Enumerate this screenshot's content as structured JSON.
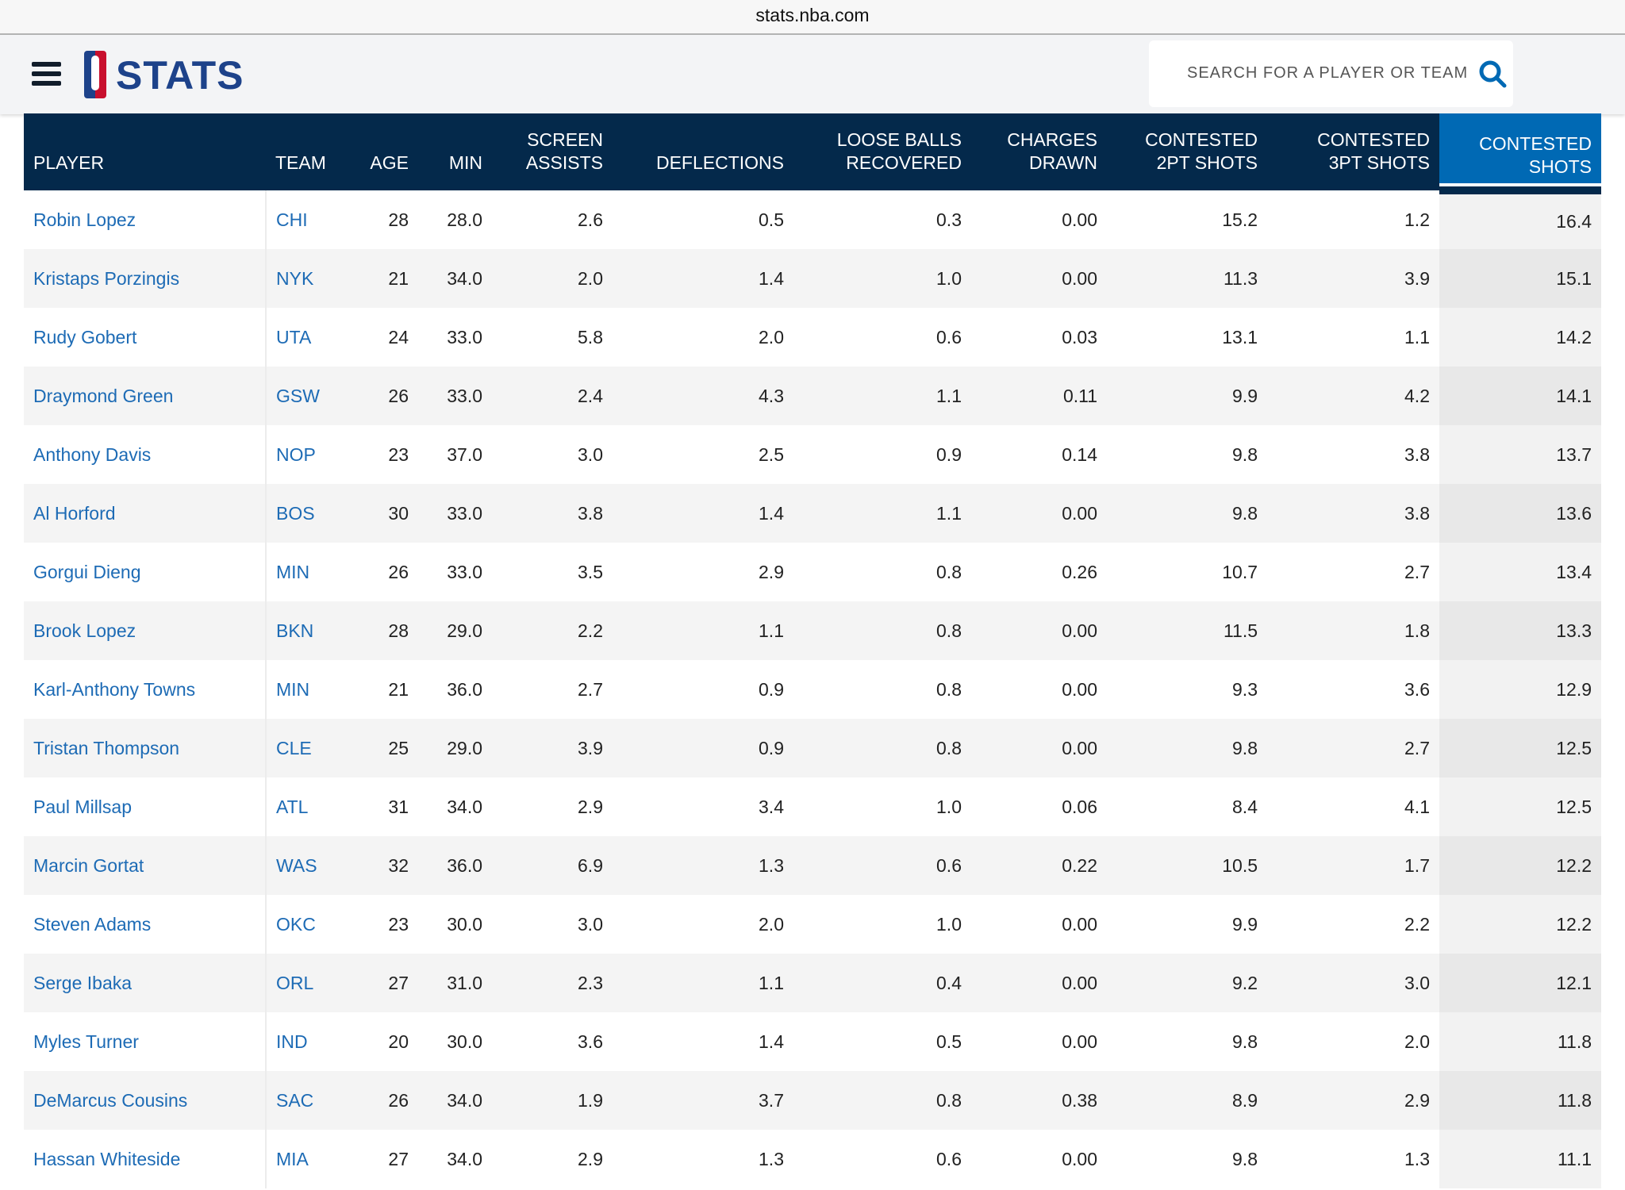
{
  "browser": {
    "url": "stats.nba.com"
  },
  "header": {
    "brand": "STATS",
    "search_placeholder": "SEARCH FOR A PLAYER OR TEAM",
    "colors": {
      "navy": "#04294b",
      "accent": "#0069b4",
      "link": "#1d6bb5"
    }
  },
  "table": {
    "columns": [
      "PLAYER",
      "TEAM",
      "AGE",
      "MIN",
      "SCREEN ASSISTS",
      "DEFLECTIONS",
      "LOOSE BALLS RECOVERED",
      "CHARGES DRAWN",
      "CONTESTED 2PT SHOTS",
      "CONTESTED 3PT SHOTS",
      "CONTESTED SHOTS"
    ],
    "sorted_column": "CONTESTED SHOTS",
    "rows": [
      [
        "Robin Lopez",
        "CHI",
        "28",
        "28.0",
        "2.6",
        "0.5",
        "0.3",
        "0.00",
        "15.2",
        "1.2",
        "16.4"
      ],
      [
        "Kristaps Porzingis",
        "NYK",
        "21",
        "34.0",
        "2.0",
        "1.4",
        "1.0",
        "0.00",
        "11.3",
        "3.9",
        "15.1"
      ],
      [
        "Rudy Gobert",
        "UTA",
        "24",
        "33.0",
        "5.8",
        "2.0",
        "0.6",
        "0.03",
        "13.1",
        "1.1",
        "14.2"
      ],
      [
        "Draymond Green",
        "GSW",
        "26",
        "33.0",
        "2.4",
        "4.3",
        "1.1",
        "0.11",
        "9.9",
        "4.2",
        "14.1"
      ],
      [
        "Anthony Davis",
        "NOP",
        "23",
        "37.0",
        "3.0",
        "2.5",
        "0.9",
        "0.14",
        "9.8",
        "3.8",
        "13.7"
      ],
      [
        "Al Horford",
        "BOS",
        "30",
        "33.0",
        "3.8",
        "1.4",
        "1.1",
        "0.00",
        "9.8",
        "3.8",
        "13.6"
      ],
      [
        "Gorgui Dieng",
        "MIN",
        "26",
        "33.0",
        "3.5",
        "2.9",
        "0.8",
        "0.26",
        "10.7",
        "2.7",
        "13.4"
      ],
      [
        "Brook Lopez",
        "BKN",
        "28",
        "29.0",
        "2.2",
        "1.1",
        "0.8",
        "0.00",
        "11.5",
        "1.8",
        "13.3"
      ],
      [
        "Karl-Anthony Towns",
        "MIN",
        "21",
        "36.0",
        "2.7",
        "0.9",
        "0.8",
        "0.00",
        "9.3",
        "3.6",
        "12.9"
      ],
      [
        "Tristan Thompson",
        "CLE",
        "25",
        "29.0",
        "3.9",
        "0.9",
        "0.8",
        "0.00",
        "9.8",
        "2.7",
        "12.5"
      ],
      [
        "Paul Millsap",
        "ATL",
        "31",
        "34.0",
        "2.9",
        "3.4",
        "1.0",
        "0.06",
        "8.4",
        "4.1",
        "12.5"
      ],
      [
        "Marcin Gortat",
        "WAS",
        "32",
        "36.0",
        "6.9",
        "1.3",
        "0.6",
        "0.22",
        "10.5",
        "1.7",
        "12.2"
      ],
      [
        "Steven Adams",
        "OKC",
        "23",
        "30.0",
        "3.0",
        "2.0",
        "1.0",
        "0.00",
        "9.9",
        "2.2",
        "12.2"
      ],
      [
        "Serge Ibaka",
        "ORL",
        "27",
        "31.0",
        "2.3",
        "1.1",
        "0.4",
        "0.00",
        "9.2",
        "3.0",
        "12.1"
      ],
      [
        "Myles Turner",
        "IND",
        "20",
        "30.0",
        "3.6",
        "1.4",
        "0.5",
        "0.00",
        "9.8",
        "2.0",
        "11.8"
      ],
      [
        "DeMarcus Cousins",
        "SAC",
        "26",
        "34.0",
        "1.9",
        "3.7",
        "0.8",
        "0.38",
        "8.9",
        "2.9",
        "11.8"
      ],
      [
        "Hassan Whiteside",
        "MIA",
        "27",
        "34.0",
        "2.9",
        "1.3",
        "0.6",
        "0.00",
        "9.8",
        "1.3",
        "11.1"
      ]
    ]
  }
}
